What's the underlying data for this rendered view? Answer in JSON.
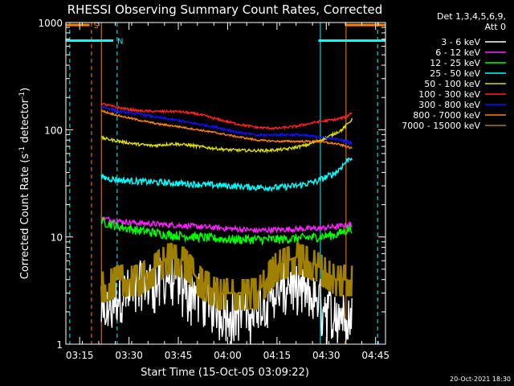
{
  "chart_data": {
    "type": "line",
    "title": "RHESSI Observing Summary Count Rates, Corrected",
    "xlabel": "Start Time (15-Oct-05 03:09:22)",
    "ylabel": "Corrected Count Rate (s",
    "ylabel_sup1": "-1",
    "ylabel_mid": " detector",
    "ylabel_sup2": "-1",
    "ylabel_end": ")",
    "yscale": "log",
    "xlim": [
      3.18,
      4.8
    ],
    "ylim": [
      1,
      1000
    ],
    "x_ticks": [
      {
        "label": "03:15",
        "t": 3.25
      },
      {
        "label": "03:30",
        "t": 3.5
      },
      {
        "label": "03:45",
        "t": 3.75
      },
      {
        "label": "04:00",
        "t": 4.0
      },
      {
        "label": "04:15",
        "t": 4.25
      },
      {
        "label": "04:30",
        "t": 4.5
      },
      {
        "label": "04:45",
        "t": 4.75
      }
    ],
    "y_ticks": [
      {
        "label": "1",
        "v": 1
      },
      {
        "label": "10",
        "v": 10
      },
      {
        "label": "100",
        "v": 100
      },
      {
        "label": "1000",
        "v": 1000
      }
    ],
    "legend_header": [
      "Det 1,3,4,5,6,9,",
      "Att 0"
    ],
    "data_start": 3.36,
    "data_end": 4.63,
    "series": [
      {
        "name": "3 - 6 keV",
        "color": "#ffffff",
        "noise": 0.5,
        "style": "sparse",
        "points": [
          [
            3.36,
            2
          ],
          [
            3.45,
            3
          ],
          [
            3.55,
            4
          ],
          [
            3.7,
            4.5
          ],
          [
            3.82,
            3.5
          ],
          [
            3.95,
            2.5
          ],
          [
            4.05,
            2
          ],
          [
            4.2,
            3
          ],
          [
            4.3,
            4
          ],
          [
            4.45,
            3
          ],
          [
            4.55,
            2
          ],
          [
            4.62,
            2
          ]
        ]
      },
      {
        "name": "6 - 12 keV",
        "color": "#ff22ff",
        "noise": 0.06,
        "points": [
          [
            3.36,
            15
          ],
          [
            3.45,
            14
          ],
          [
            3.55,
            13.5
          ],
          [
            3.7,
            13
          ],
          [
            3.85,
            12.5
          ],
          [
            4.0,
            12
          ],
          [
            4.15,
            11.5
          ],
          [
            4.3,
            11.8
          ],
          [
            4.45,
            12
          ],
          [
            4.55,
            12.5
          ],
          [
            4.62,
            13
          ]
        ]
      },
      {
        "name": "12 - 25 keV",
        "color": "#00ff00",
        "noise": 0.1,
        "points": [
          [
            3.36,
            14
          ],
          [
            3.45,
            12.5
          ],
          [
            3.55,
            11.5
          ],
          [
            3.7,
            10.5
          ],
          [
            3.85,
            10
          ],
          [
            4.0,
            9.5
          ],
          [
            4.15,
            9.5
          ],
          [
            4.25,
            9.5
          ],
          [
            4.35,
            9.7
          ],
          [
            4.45,
            10
          ],
          [
            4.55,
            10.5
          ],
          [
            4.62,
            12
          ]
        ]
      },
      {
        "name": "25 - 50 keV",
        "color": "#00ffff",
        "noise": 0.07,
        "points": [
          [
            3.36,
            36
          ],
          [
            3.45,
            34
          ],
          [
            3.55,
            33
          ],
          [
            3.7,
            32
          ],
          [
            3.85,
            31
          ],
          [
            4.0,
            30
          ],
          [
            4.15,
            29
          ],
          [
            4.25,
            29
          ],
          [
            4.35,
            30
          ],
          [
            4.45,
            33
          ],
          [
            4.55,
            40
          ],
          [
            4.62,
            55
          ]
        ]
      },
      {
        "name": "50 - 100 keV",
        "color": "#dddd00",
        "noise": 0.03,
        "points": [
          [
            3.36,
            84
          ],
          [
            3.45,
            78
          ],
          [
            3.55,
            73
          ],
          [
            3.62,
            71
          ],
          [
            3.72,
            74
          ],
          [
            3.8,
            72
          ],
          [
            3.9,
            68
          ],
          [
            4.0,
            65
          ],
          [
            4.1,
            64
          ],
          [
            4.2,
            64
          ],
          [
            4.3,
            66
          ],
          [
            4.4,
            72
          ],
          [
            4.5,
            84
          ],
          [
            4.58,
            100
          ],
          [
            4.63,
            125
          ]
        ]
      },
      {
        "name": "100 - 300 keV",
        "color": "#ff2020",
        "noise": 0.025,
        "points": [
          [
            3.36,
            175
          ],
          [
            3.45,
            160
          ],
          [
            3.55,
            150
          ],
          [
            3.65,
            148
          ],
          [
            3.75,
            148
          ],
          [
            3.85,
            140
          ],
          [
            3.95,
            125
          ],
          [
            4.05,
            113
          ],
          [
            4.15,
            105
          ],
          [
            4.25,
            103
          ],
          [
            4.35,
            108
          ],
          [
            4.45,
            118
          ],
          [
            4.55,
            125
          ],
          [
            4.6,
            132
          ],
          [
            4.63,
            145
          ]
        ]
      },
      {
        "name": "300 - 800 keV",
        "color": "#1010ff",
        "noise": 0.025,
        "points": [
          [
            3.36,
            165
          ],
          [
            3.45,
            148
          ],
          [
            3.55,
            140
          ],
          [
            3.65,
            130
          ],
          [
            3.75,
            122
          ],
          [
            3.85,
            113
          ],
          [
            3.95,
            105
          ],
          [
            4.05,
            95
          ],
          [
            4.15,
            89
          ],
          [
            4.25,
            90
          ],
          [
            4.35,
            90
          ],
          [
            4.45,
            86
          ],
          [
            4.55,
            82
          ],
          [
            4.6,
            78
          ],
          [
            4.63,
            75
          ]
        ]
      },
      {
        "name": "800 - 7000 keV",
        "color": "#ff8000",
        "noise": 0.02,
        "points": [
          [
            3.36,
            150
          ],
          [
            3.45,
            135
          ],
          [
            3.55,
            123
          ],
          [
            3.65,
            113
          ],
          [
            3.75,
            107
          ],
          [
            3.85,
            100
          ],
          [
            3.95,
            93
          ],
          [
            4.05,
            86
          ],
          [
            4.15,
            80
          ],
          [
            4.25,
            78
          ],
          [
            4.35,
            78
          ],
          [
            4.45,
            78
          ],
          [
            4.55,
            74
          ],
          [
            4.6,
            70
          ],
          [
            4.63,
            67
          ]
        ]
      },
      {
        "name": "7000 - 15000 keV",
        "color": "#a08000",
        "noise": 0.12,
        "style": "step",
        "points": [
          [
            3.36,
            3.5
          ],
          [
            3.45,
            4
          ],
          [
            3.55,
            4
          ],
          [
            3.62,
            5
          ],
          [
            3.7,
            6.5
          ],
          [
            3.78,
            6
          ],
          [
            3.85,
            4
          ],
          [
            3.95,
            3
          ],
          [
            4.05,
            3
          ],
          [
            4.15,
            3
          ],
          [
            4.25,
            5.5
          ],
          [
            4.35,
            6.5
          ],
          [
            4.45,
            5.5
          ],
          [
            4.55,
            4
          ],
          [
            4.62,
            4
          ]
        ]
      }
    ],
    "flags": [
      {
        "label": "S",
        "color": "#ff8000",
        "y": 948,
        "segments": [
          [
            3.18,
            3.3
          ],
          [
            4.6,
            4.8
          ]
        ]
      },
      {
        "label": "N",
        "color": "#00ffff",
        "y": 678,
        "segments": [
          [
            3.18,
            3.42
          ],
          [
            4.46,
            4.8
          ]
        ]
      }
    ],
    "vlines": [
      {
        "t": 3.31,
        "color": "#ff8000",
        "dash": true
      },
      {
        "t": 3.36,
        "color": "#ff8000",
        "dash": false
      },
      {
        "t": 3.44,
        "color": "#00ffff",
        "dash": true
      },
      {
        "t": 4.47,
        "color": "#00ffff",
        "dash": false
      },
      {
        "t": 4.6,
        "color": "#ff8000",
        "dash": false
      },
      {
        "t": 4.76,
        "color": "#00ffff",
        "dash": true
      },
      {
        "t": 3.2,
        "color": "#00ffff",
        "dash": true
      }
    ],
    "footer_date": "20-Oct-2021 18:30"
  }
}
